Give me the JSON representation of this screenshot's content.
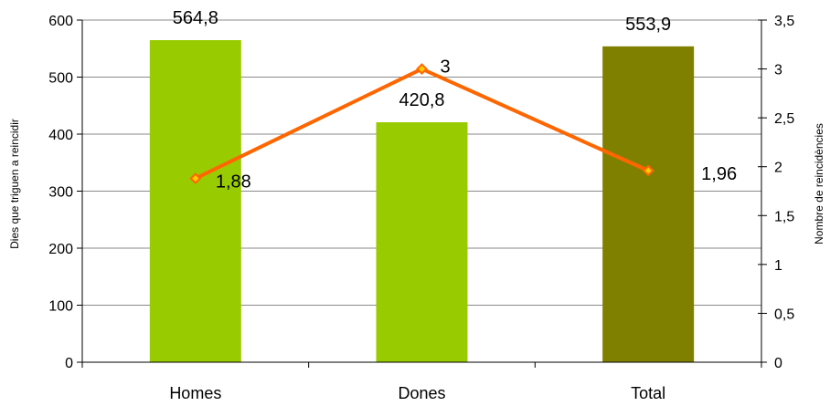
{
  "chart_data": {
    "type": "bar",
    "categories": [
      "Homes",
      "Dones",
      "Total"
    ],
    "series": [
      {
        "type": "bar",
        "axis": "left",
        "values": [
          564.8,
          420.8,
          553.9
        ],
        "labels": [
          "564,8",
          "420,8",
          "553,9"
        ],
        "colors": [
          "#99cc00",
          "#99cc00",
          "#808000"
        ]
      },
      {
        "type": "line",
        "axis": "right",
        "values": [
          1.88,
          3,
          1.96
        ],
        "labels": [
          "1,88",
          "3",
          "1,96"
        ],
        "color": "#ff6600",
        "marker_fill": "#ffcc00"
      }
    ],
    "ylabel": "Dies que triguen a reincidir",
    "y2label": "Nombre de reincidències",
    "ylim": [
      0,
      600
    ],
    "y2lim": [
      0,
      3.5
    ],
    "y_ticks": [
      "0",
      "100",
      "200",
      "300",
      "400",
      "500",
      "600"
    ],
    "y2_ticks": [
      "0",
      "0,5",
      "1",
      "1,5",
      "2",
      "2,5",
      "3",
      "3,5"
    ],
    "grid": true,
    "legend": "none"
  }
}
